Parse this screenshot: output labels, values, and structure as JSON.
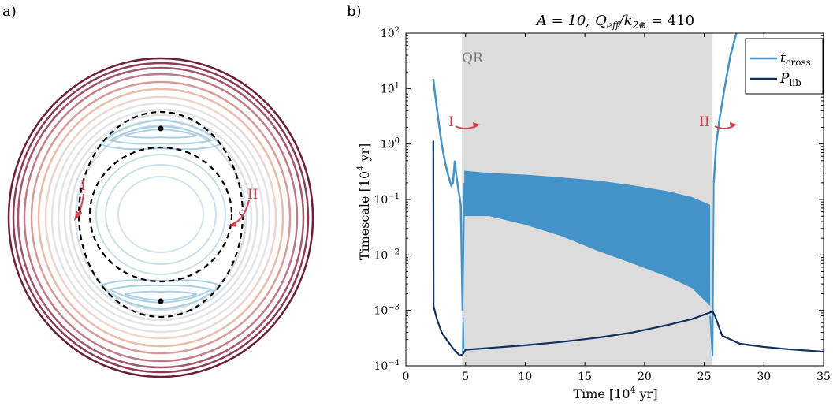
{
  "panel_a": {
    "label": "a)",
    "annotations": [
      "I",
      "II"
    ],
    "colors": {
      "inner_contours": "#a9cfe3",
      "separatrix": "#000000",
      "outer_light": "#dfe3e8",
      "outer_warm": "#e8b49c",
      "outer_dark": "#6b1d3a",
      "arrow": "#d8404f"
    }
  },
  "panel_b": {
    "label": "b)",
    "title_parts": {
      "a": "A = 10;  Q",
      "a_sub": "eff",
      "b": "/k",
      "b_sub": "2⊕",
      "c": " = 410"
    },
    "shaded_label": "QR",
    "annotations": [
      "I",
      "II"
    ],
    "legend": {
      "t_main": "t",
      "t_sub": "cross",
      "p_main": "P",
      "p_sub": "lib"
    }
  },
  "chart_data": {
    "type": "line",
    "xlabel_main": "Time [10",
    "xlabel_sup": "4",
    "xlabel_end": " yr]",
    "ylabel_main": "Timescale [10",
    "ylabel_sup": "4",
    "ylabel_end": " yr]",
    "xlim": [
      0,
      35
    ],
    "ylim": [
      0.0001,
      100
    ],
    "yscale": "log",
    "x_ticks": [
      0,
      5,
      10,
      15,
      20,
      25,
      30,
      35
    ],
    "y_ticks": [
      {
        "base": "10",
        "exp": "−4"
      },
      {
        "base": "10",
        "exp": "−3"
      },
      {
        "base": "10",
        "exp": "−2"
      },
      {
        "base": "10",
        "exp": "−1"
      },
      {
        "base": "10",
        "exp": "0"
      },
      {
        "base": "10",
        "exp": "1"
      },
      {
        "base": "10",
        "exp": "2"
      }
    ],
    "shaded_region": [
      4.7,
      25.7
    ],
    "series": [
      {
        "name": "t_cross",
        "color": "#4393c9",
        "x": [
          2.3,
          2.45,
          2.7,
          3.0,
          3.3,
          3.6,
          3.8,
          3.95,
          4.1,
          4.25,
          4.4,
          4.6,
          4.75
        ],
        "y": [
          15,
          8,
          3,
          1.0,
          0.45,
          0.25,
          0.18,
          0.2,
          0.5,
          0.25,
          0.15,
          0.08,
          0.001
        ],
        "band_x": [
          4.9,
          7,
          10,
          13,
          16,
          19,
          22,
          24,
          25.5
        ],
        "band_upper": [
          0.33,
          0.3,
          0.28,
          0.25,
          0.22,
          0.18,
          0.14,
          0.11,
          0.08
        ],
        "band_lower": [
          0.05,
          0.05,
          0.035,
          0.022,
          0.012,
          0.007,
          0.004,
          0.0025,
          0.0012
        ],
        "post_x": [
          25.8,
          26.0,
          26.3,
          26.7,
          27.2,
          27.7
        ],
        "post_y": [
          0.2,
          1.0,
          3,
          10,
          40,
          100
        ]
      },
      {
        "name": "P_lib",
        "color": "#10305e",
        "x": [
          2.3,
          2.32,
          2.6,
          3.0,
          3.5,
          4.0,
          4.5,
          4.75,
          5.0,
          7,
          10,
          13,
          16,
          19,
          22,
          24,
          25.7,
          25.9,
          26.5,
          28,
          30,
          32,
          35
        ],
        "y": [
          1.15,
          0.0012,
          0.0007,
          0.0004,
          0.00028,
          0.0002,
          0.000155,
          0.00016,
          0.000195,
          0.00021,
          0.000235,
          0.00027,
          0.00032,
          0.0004,
          0.00055,
          0.0007,
          0.00095,
          0.0008,
          0.00035,
          0.00025,
          0.00022,
          0.0002,
          0.00018
        ]
      }
    ]
  }
}
